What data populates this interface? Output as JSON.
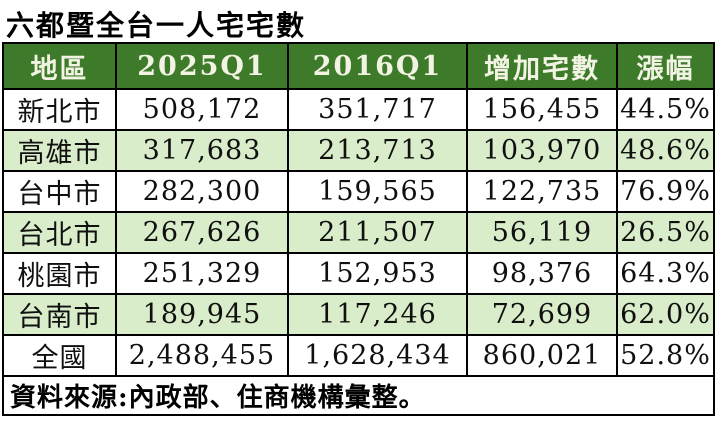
{
  "chart_data": {
    "type": "table",
    "title": "六都暨全台一人宅宅數",
    "columns": [
      "地區",
      "2025Q1",
      "2016Q1",
      "增加宅數",
      "漲幅"
    ],
    "rows": [
      [
        "新北市",
        "508,172",
        "351,717",
        "156,455",
        "44.5%"
      ],
      [
        "高雄市",
        "317,683",
        "213,713",
        "103,970",
        "48.6%"
      ],
      [
        "台中市",
        "282,300",
        "159,565",
        "122,735",
        "76.9%"
      ],
      [
        "台北市",
        "267,626",
        "211,507",
        "56,119",
        "26.5%"
      ],
      [
        "桃園市",
        "251,329",
        "152,953",
        "98,376",
        "64.3%"
      ],
      [
        "台南市",
        "189,945",
        "117,246",
        "72,699",
        "62.0%"
      ],
      [
        "全國",
        "2,488,455",
        "1,628,434",
        "860,021",
        "52.8%"
      ]
    ],
    "source_note": "資料來源:內政部、住商機構彙整。",
    "layout": {
      "striped": "alternating white and light-green data rows",
      "header_position": "top"
    }
  },
  "colors": {
    "header_bg": "#3d7b2b",
    "header_text": "#f2f3e3",
    "row_bg": "#ffffff",
    "row_alt_bg": "#d9edca",
    "border": "#000000",
    "title_text": "#000000",
    "cell_text": "#101010"
  }
}
